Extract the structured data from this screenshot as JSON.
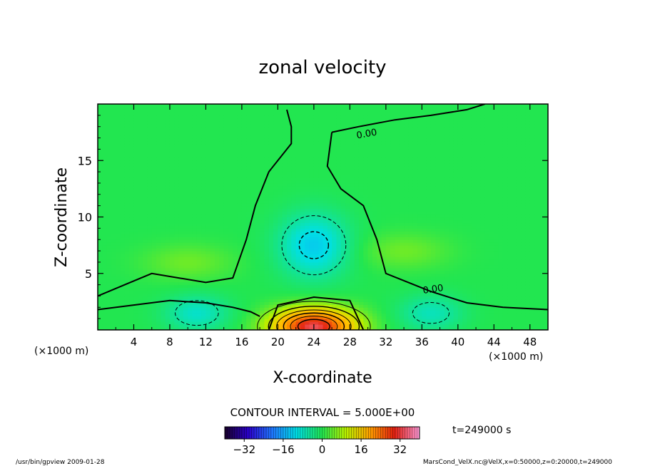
{
  "chart_data": {
    "type": "heatmap",
    "title": "zonal velocity",
    "xlabel": "X-coordinate",
    "ylabel": "Z-coordinate",
    "x_unit": "(×1000 m)",
    "xlim": [
      0,
      50
    ],
    "ylim": [
      0,
      20
    ],
    "x_ticks": [
      "4",
      "8",
      "12",
      "16",
      "20",
      "24",
      "28",
      "32",
      "36",
      "40",
      "44",
      "48"
    ],
    "y_ticks": [
      "5",
      "10",
      "15"
    ],
    "contour_labels": [
      "0.00",
      "0.00"
    ],
    "contour_interval_text": "CONTOUR INTERVAL = 5.000E+00",
    "colorbar": {
      "min": -40,
      "max": 40,
      "ticks": [
        "−32",
        "−16",
        "0",
        "16",
        "32"
      ],
      "tick_values": [
        -32,
        -16,
        0,
        16,
        32
      ]
    },
    "time_text": "t=249000 s",
    "features": [
      {
        "kind": "jet",
        "x": 24,
        "z": 0.3,
        "value": 35
      },
      {
        "kind": "negative_core",
        "x": 24,
        "z": 7.5,
        "value": -12
      },
      {
        "kind": "negative_near_surface",
        "x": 11,
        "z": 1.5,
        "value": -8
      },
      {
        "kind": "negative_near_surface",
        "x": 37,
        "z": 1.5,
        "value": -7
      },
      {
        "kind": "positive_band",
        "x": 10,
        "z": 6,
        "value": 4
      },
      {
        "kind": "positive_band",
        "x": 34,
        "z": 7,
        "value": 4
      }
    ]
  },
  "footer": {
    "left": "/usr/bin/gpview   2009-01-28",
    "right": "MarsCond_VelX.nc@VelX,x=0:50000,z=0:20000,t=249000"
  }
}
